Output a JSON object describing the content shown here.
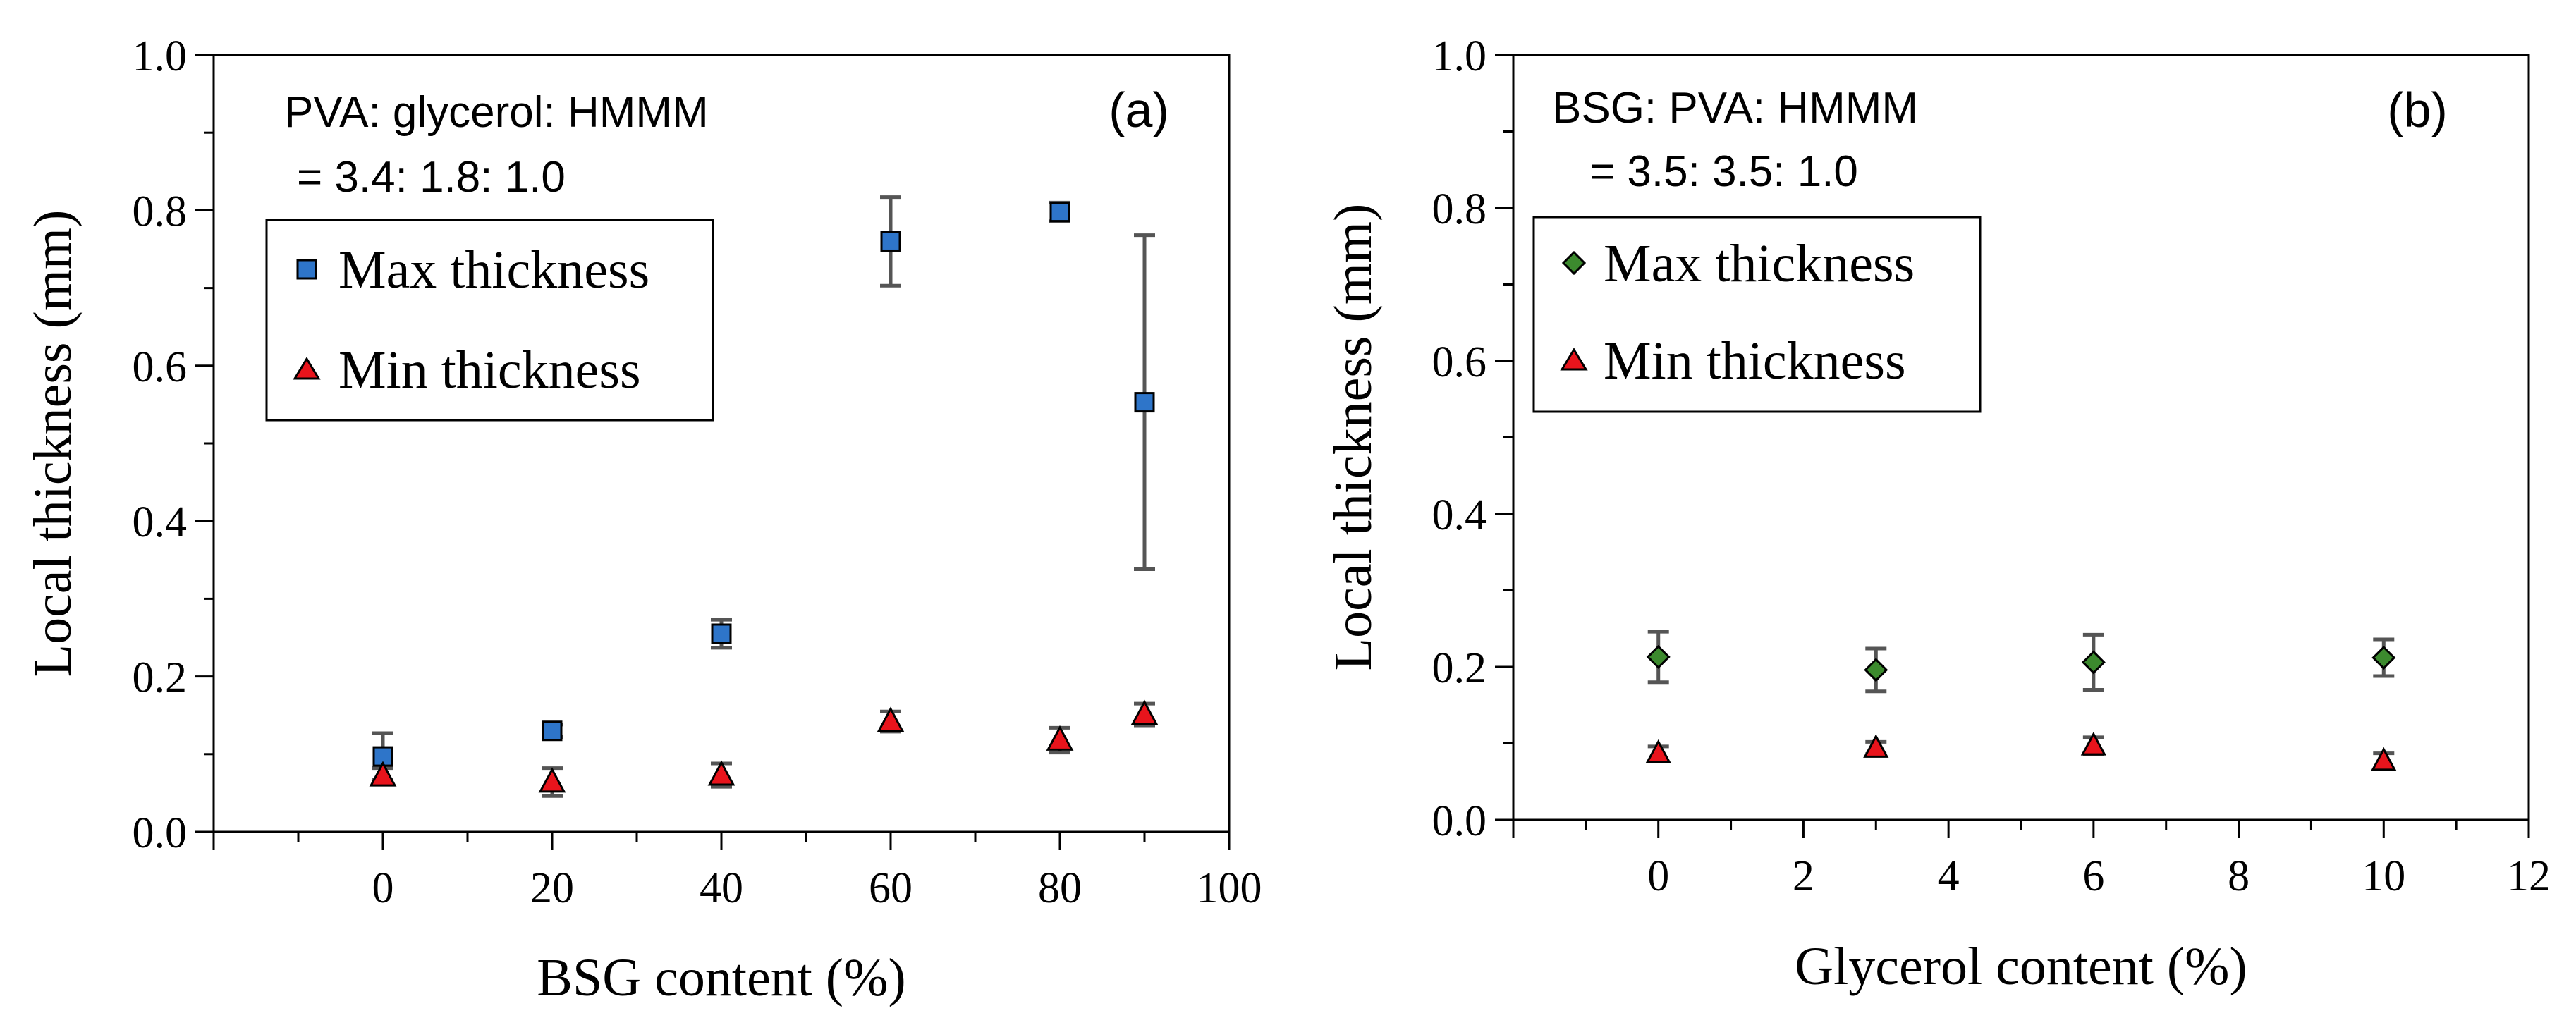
{
  "chart_data": [
    {
      "type": "scatter",
      "panel_label": "(a)",
      "condition": [
        "PVA: glycerol: HMMM",
        "= 3.4: 1.8: 1.0"
      ],
      "xlabel": "BSG content (%)",
      "ylabel": "Local thickness (mm)",
      "xlim": [
        -20,
        100
      ],
      "ylim": [
        0,
        1
      ],
      "x_ticks": [
        "0",
        "20",
        "40",
        "60",
        "80",
        "100"
      ],
      "y_ticks": [
        "0.0",
        "0.2",
        "0.4",
        "0.6",
        "0.8",
        "1.0"
      ],
      "grid": false,
      "legend_position": "top-left",
      "series": [
        {
          "name": "Max thickness",
          "marker": "square",
          "color": "#2e75c9",
          "points": [
            {
              "x": 0,
              "y": 0.097,
              "err": 0.03
            },
            {
              "x": 20,
              "y": 0.13,
              "err": 0.008
            },
            {
              "x": 40,
              "y": 0.255,
              "err": 0.018
            },
            {
              "x": 60,
              "y": 0.76,
              "err": 0.057
            },
            {
              "x": 80,
              "y": 0.798,
              "err": 0.012
            },
            {
              "x": 90,
              "y": 0.553,
              "err": 0.215
            }
          ]
        },
        {
          "name": "Min thickness",
          "marker": "triangle",
          "color": "#e8141c",
          "points": [
            {
              "x": 0,
              "y": 0.072,
              "err": 0.01
            },
            {
              "x": 20,
              "y": 0.064,
              "err": 0.018
            },
            {
              "x": 40,
              "y": 0.073,
              "err": 0.015
            },
            {
              "x": 60,
              "y": 0.142,
              "err": 0.013
            },
            {
              "x": 80,
              "y": 0.118,
              "err": 0.016
            },
            {
              "x": 90,
              "y": 0.151,
              "err": 0.014
            }
          ]
        }
      ]
    },
    {
      "type": "scatter",
      "panel_label": "(b)",
      "condition": [
        "BSG: PVA: HMMM",
        "= 3.5: 3.5: 1.0"
      ],
      "xlabel": "Glycerol content (%)",
      "ylabel": "Local thickness (mm)",
      "xlim": [
        -2,
        12
      ],
      "ylim": [
        0,
        1
      ],
      "x_ticks": [
        "0",
        "2",
        "4",
        "6",
        "8",
        "10",
        "12"
      ],
      "y_ticks": [
        "0.0",
        "0.2",
        "0.4",
        "0.6",
        "0.8",
        "1.0"
      ],
      "grid": false,
      "legend_position": "top-left",
      "series": [
        {
          "name": "Max thickness",
          "marker": "diamond",
          "color": "#3c8a2e",
          "points": [
            {
              "x": 0,
              "y": 0.213,
              "err": 0.033
            },
            {
              "x": 3,
              "y": 0.196,
              "err": 0.028
            },
            {
              "x": 6,
              "y": 0.206,
              "err": 0.036
            },
            {
              "x": 10,
              "y": 0.212,
              "err": 0.024
            }
          ]
        },
        {
          "name": "Min thickness",
          "marker": "triangle",
          "color": "#e8141c",
          "points": [
            {
              "x": 0,
              "y": 0.087,
              "err": 0.009
            },
            {
              "x": 3,
              "y": 0.094,
              "err": 0.008
            },
            {
              "x": 6,
              "y": 0.097,
              "err": 0.011
            },
            {
              "x": 10,
              "y": 0.077,
              "err": 0.01
            }
          ]
        }
      ]
    }
  ]
}
